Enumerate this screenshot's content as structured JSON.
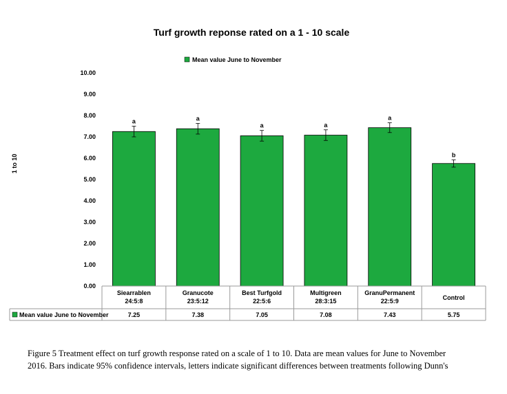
{
  "chart_data": {
    "type": "bar",
    "title": "Turf growth reponse rated on a  1 - 10 scale",
    "ylabel": "1 to 10",
    "ylim": [
      0,
      10
    ],
    "yticks": [
      "0.00",
      "1.00",
      "2.00",
      "3.00",
      "4.00",
      "5.00",
      "6.00",
      "7.00",
      "8.00",
      "9.00",
      "10.00"
    ],
    "categories": [
      {
        "name": "Siearrablen",
        "npk": "24:5:8"
      },
      {
        "name": "Granucote",
        "npk": "23:5:12"
      },
      {
        "name": "Best Turfgold",
        "npk": "22:5:6"
      },
      {
        "name": "Multigreen",
        "npk": "28:3:15"
      },
      {
        "name": "GranuPermanent",
        "npk": "22:5:9"
      },
      {
        "name": "Control",
        "npk": ""
      }
    ],
    "series": [
      {
        "name": "Mean value June to November",
        "color": "#1DA93F",
        "values": [
          7.25,
          7.38,
          7.05,
          7.08,
          7.43,
          5.75
        ],
        "value_labels": [
          "7.25",
          "7.38",
          "7.05",
          "7.08",
          "7.43",
          "5.75"
        ],
        "ci_low": [
          7.0,
          7.13,
          6.8,
          6.83,
          7.2,
          5.58
        ],
        "ci_high": [
          7.5,
          7.63,
          7.3,
          7.33,
          7.66,
          5.92
        ],
        "letters": [
          "a",
          "a",
          "a",
          "a",
          "a",
          "b"
        ]
      }
    ],
    "legend": {
      "label": "Mean value June to November",
      "position": "top"
    },
    "grid": false,
    "data_table": true
  },
  "caption": {
    "line1": "Figure 5 Treatment effect on turf growth response rated on a scale of 1 to 10. Data are mean values for June to November",
    "line2": "2016. Bars indicate 95% confidence intervals, letters indicate significant differences between treatments following Dunn's"
  }
}
